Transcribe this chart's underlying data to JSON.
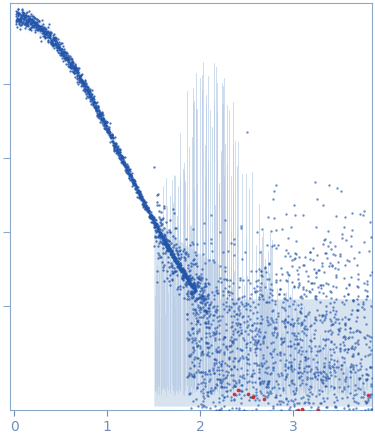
{
  "title": "",
  "xlabel": "",
  "ylabel": "",
  "xlim": [
    -0.05,
    3.85
  ],
  "ylim": [
    -0.08,
    1.02
  ],
  "xticks": [
    0,
    1,
    2,
    3
  ],
  "background_color": "#ffffff",
  "scatter_color_main": "#2255aa",
  "scatter_color_outlier": "#cc2222",
  "error_band_color": "#b8cce4",
  "spike_color": "#b8cce4",
  "figsize": [
    3.75,
    4.37
  ],
  "dpi": 100,
  "axis_color": "#8aaacc",
  "tick_label_color": "#7090bb"
}
